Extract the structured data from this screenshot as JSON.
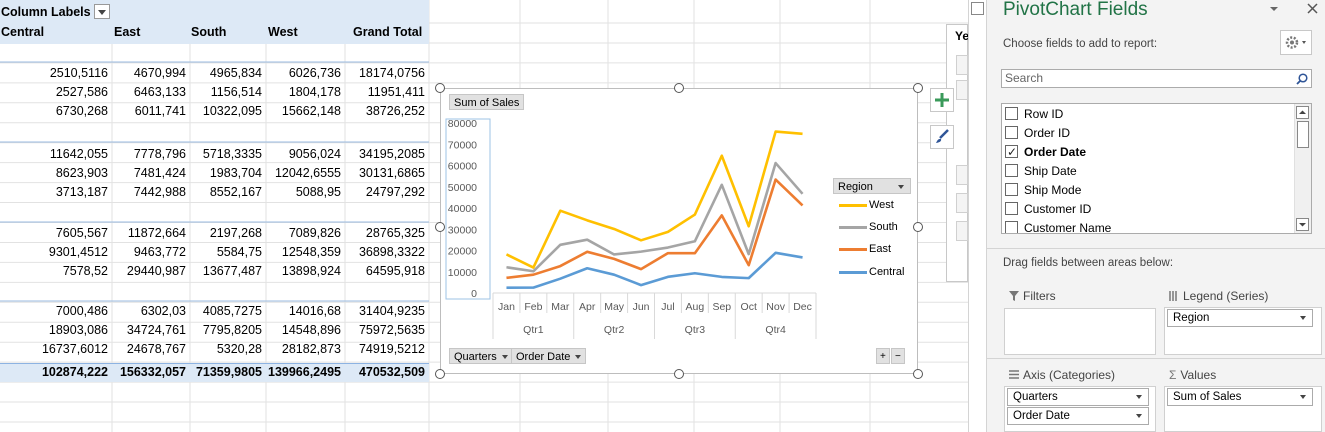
{
  "pivot": {
    "column_labels": "Column Labels",
    "headers": [
      "Central",
      "East",
      "South",
      "West",
      "Grand Total"
    ],
    "rows": [
      [
        "2510,5116",
        "4670,994",
        "4965,834",
        "6026,736",
        "18174,0756"
      ],
      [
        "2527,586",
        "6463,133",
        "1156,514",
        "1804,178",
        "11951,411"
      ],
      [
        "6730,268",
        "6011,741",
        "10322,095",
        "15662,148",
        "38726,252"
      ],
      [
        "11642,055",
        "7778,796",
        "5718,3335",
        "9056,024",
        "34195,2085"
      ],
      [
        "8623,903",
        "7481,424",
        "1983,704",
        "12042,6555",
        "30131,6865"
      ],
      [
        "3713,187",
        "7442,988",
        "8552,167",
        "5088,95",
        "24797,292"
      ],
      [
        "7605,567",
        "11872,664",
        "2197,268",
        "7089,826",
        "28765,325"
      ],
      [
        "9301,4512",
        "9463,772",
        "5584,75",
        "12548,359",
        "36898,3322"
      ],
      [
        "7578,52",
        "29440,987",
        "13677,487",
        "13898,924",
        "64595,918"
      ],
      [
        "7000,486",
        "6302,03",
        "4085,7275",
        "14016,68",
        "31404,9235"
      ],
      [
        "18903,086",
        "34724,761",
        "7795,8205",
        "14548,896",
        "75972,5635"
      ],
      [
        "16737,6012",
        "24678,767",
        "5320,28",
        "28182,873",
        "74919,5212"
      ]
    ],
    "grand_total": [
      "102874,222",
      "156332,057",
      "71359,9805",
      "139966,2495",
      "470532,509"
    ]
  },
  "chart": {
    "value_field_button": "Sum of Sales",
    "legend_title": "Region",
    "axis_buttons": [
      "Quarters",
      "Order Date"
    ],
    "plus_minus": [
      "+",
      "−"
    ],
    "months": [
      "Jan",
      "Feb",
      "Mar",
      "Apr",
      "May",
      "Jun",
      "Jul",
      "Aug",
      "Sep",
      "Oct",
      "Nov",
      "Dec"
    ],
    "quarters": [
      "Qtr1",
      "Qtr2",
      "Qtr3",
      "Qtr4"
    ],
    "yticks": [
      "80000",
      "70000",
      "60000",
      "50000",
      "40000",
      "30000",
      "20000",
      "10000",
      "0"
    ]
  },
  "chart_data": {
    "type": "line",
    "categories": [
      "Jan",
      "Feb",
      "Mar",
      "Apr",
      "May",
      "Jun",
      "Jul",
      "Aug",
      "Sep",
      "Oct",
      "Nov",
      "Dec"
    ],
    "ylim": [
      0,
      80000
    ],
    "legend_position": "right",
    "grid": false,
    "series": [
      {
        "name": "West",
        "color": "#ffc000",
        "values": [
          18174,
          11951,
          38726,
          34195,
          30132,
          24797,
          28765,
          36898,
          64596,
          31405,
          75973,
          74920
        ]
      },
      {
        "name": "South",
        "color": "#a5a5a5",
        "values": [
          12108,
          10223,
          22688,
          25094,
          18137,
          19466,
          21393,
          24346,
          50921,
          18307,
          61152,
          46679
        ]
      },
      {
        "name": "East",
        "color": "#ed7d31",
        "values": [
          7142,
          8620,
          12666,
          19381,
          16059,
          11247,
          18768,
          18723,
          36518,
          13088,
          53396,
          41201
        ]
      },
      {
        "name": "Central",
        "color": "#5b9bd5",
        "values": [
          2511,
          2528,
          6730,
          11642,
          8624,
          3713,
          7606,
          9301,
          7579,
          7000,
          18903,
          16738
        ]
      }
    ]
  },
  "pane": {
    "title": "PivotChart Fields",
    "choose": "Choose fields to add to report:",
    "search_placeholder": "Search",
    "fields": [
      {
        "label": "Row ID",
        "checked": false
      },
      {
        "label": "Order ID",
        "checked": false
      },
      {
        "label": "Order Date",
        "checked": true
      },
      {
        "label": "Ship Date",
        "checked": false
      },
      {
        "label": "Ship Mode",
        "checked": false
      },
      {
        "label": "Customer ID",
        "checked": false
      },
      {
        "label": "Customer Name",
        "checked": false
      }
    ],
    "drag_text": "Drag fields between areas below:",
    "filters_label": "Filters",
    "legend_label": "Legend (Series)",
    "legend_items": [
      "Region"
    ],
    "axis_label": "Axis (Categories)",
    "axis_items": [
      "Quarters",
      "Order Date"
    ],
    "values_label": "Values",
    "values_items": [
      "Sum of Sales"
    ],
    "partial_slicer_text": "Ye"
  }
}
